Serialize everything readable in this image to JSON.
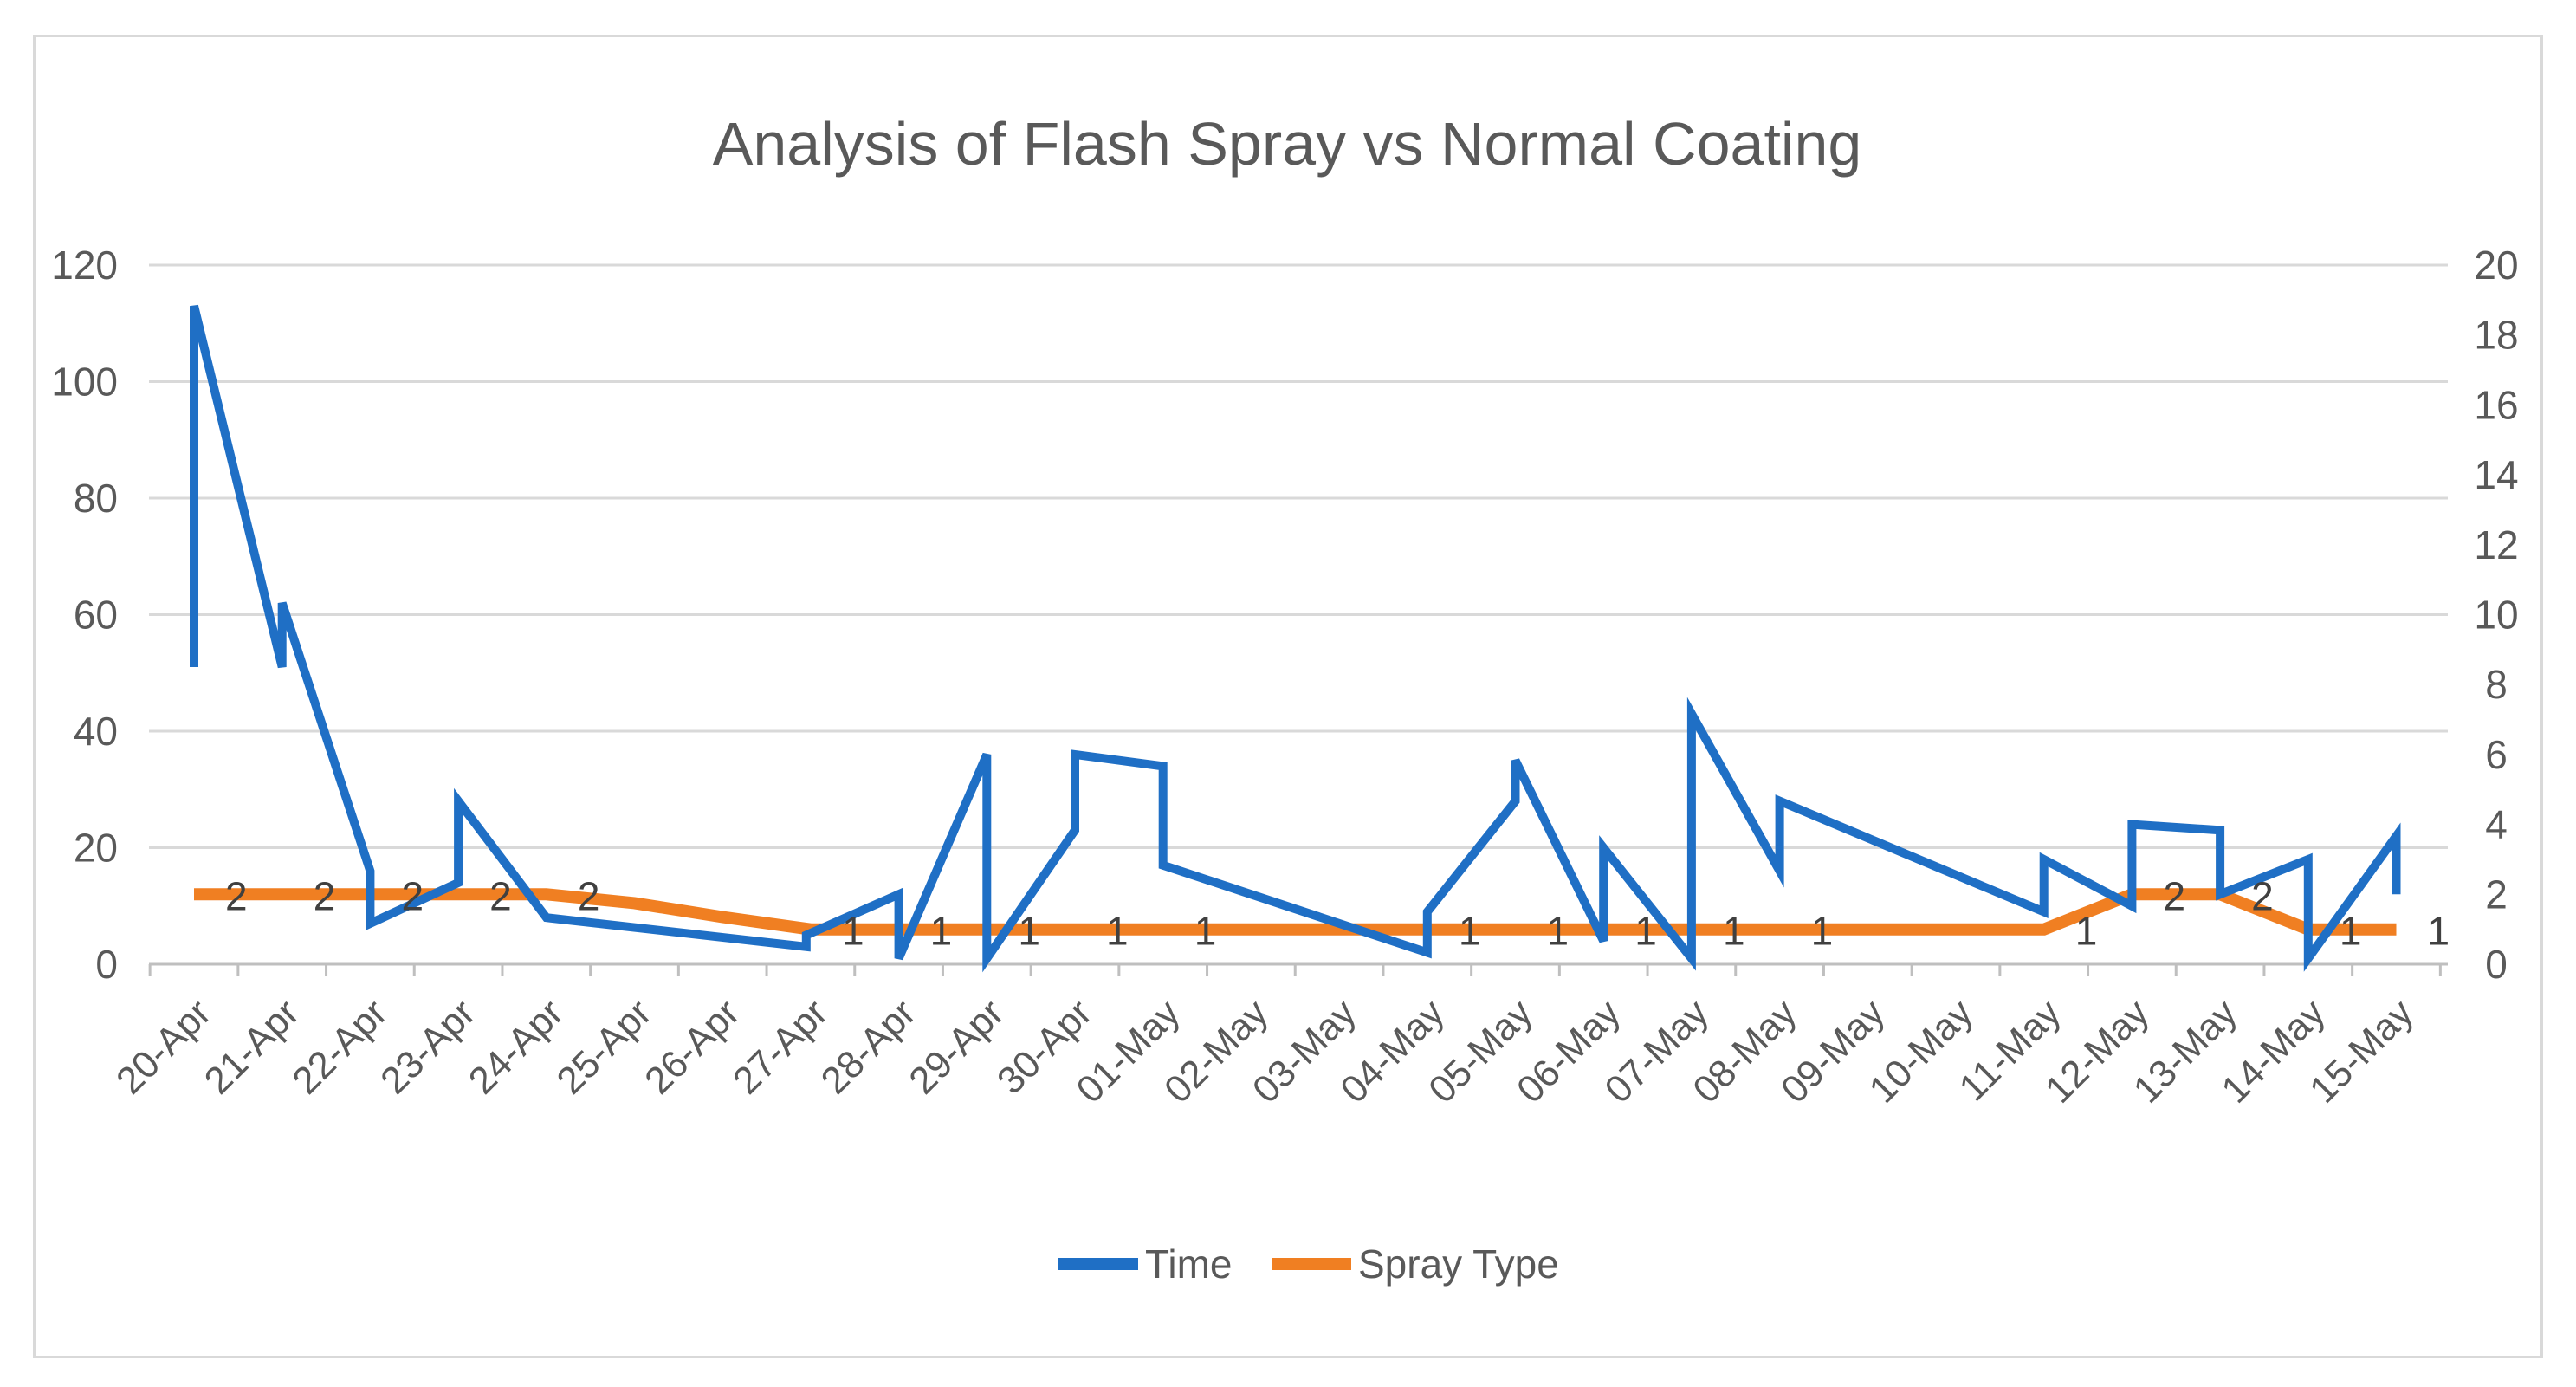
{
  "chart_data": {
    "type": "line",
    "title": "Analysis of Flash Spray vs Normal Coating",
    "categories": [
      "20-Apr",
      "21-Apr",
      "22-Apr",
      "23-Apr",
      "24-Apr",
      "25-Apr",
      "26-Apr",
      "27-Apr",
      "28-Apr",
      "29-Apr",
      "30-Apr",
      "01-May",
      "02-May",
      "03-May",
      "04-May",
      "05-May",
      "06-May",
      "07-May",
      "08-May",
      "09-May",
      "10-May",
      "11-May",
      "12-May",
      "13-May",
      "14-May",
      "15-May"
    ],
    "left_axis": {
      "ylim": [
        0,
        120
      ],
      "ticks": [
        "0",
        "20",
        "40",
        "60",
        "80",
        "100",
        "120"
      ]
    },
    "right_axis": {
      "ylim": [
        0,
        20
      ],
      "ticks": [
        "0",
        "2",
        "4",
        "6",
        "8",
        "10",
        "12",
        "14",
        "16",
        "18",
        "20"
      ]
    },
    "grid": true,
    "legend_position": "bottom",
    "series": [
      {
        "name": "Time",
        "axis": "left",
        "color": "#1f6fc5",
        "points": [
          [
            0.0,
            51
          ],
          [
            0.0,
            113
          ],
          [
            1.0,
            51
          ],
          [
            1.0,
            62
          ],
          [
            2.0,
            16
          ],
          [
            2.0,
            7
          ],
          [
            3.0,
            14
          ],
          [
            3.0,
            28
          ],
          [
            4.0,
            8
          ],
          [
            6.95,
            3
          ],
          [
            6.95,
            5
          ],
          [
            8.0,
            12
          ],
          [
            8.0,
            1
          ],
          [
            9.0,
            36
          ],
          [
            9.0,
            1
          ],
          [
            10.0,
            23
          ],
          [
            10.0,
            36
          ],
          [
            11.0,
            34
          ],
          [
            11.0,
            17
          ],
          [
            14.0,
            2
          ],
          [
            14.0,
            9
          ],
          [
            15.0,
            28
          ],
          [
            15.0,
            35
          ],
          [
            16.0,
            4
          ],
          [
            16.0,
            20
          ],
          [
            17.0,
            1
          ],
          [
            17.0,
            43
          ],
          [
            18.0,
            16
          ],
          [
            18.0,
            28
          ],
          [
            21.0,
            9
          ],
          [
            21.0,
            18
          ],
          [
            22.0,
            10
          ],
          [
            22.0,
            24
          ],
          [
            23.0,
            23
          ],
          [
            23.0,
            12
          ],
          [
            24.0,
            18
          ],
          [
            24.0,
            1
          ],
          [
            25.0,
            22
          ],
          [
            25.0,
            12
          ]
        ]
      },
      {
        "name": "Spray Type",
        "axis": "right",
        "color": "#f07f22",
        "points": [
          [
            0.0,
            2
          ],
          [
            1.0,
            2
          ],
          [
            2.0,
            2
          ],
          [
            3.0,
            2
          ],
          [
            4.0,
            2
          ],
          [
            5.0,
            1.75
          ],
          [
            6.0,
            1.35
          ],
          [
            7.0,
            1
          ],
          [
            8.0,
            1
          ],
          [
            9.0,
            1
          ],
          [
            10.0,
            1
          ],
          [
            11.0,
            1
          ],
          [
            12.0,
            1
          ],
          [
            13.0,
            1
          ],
          [
            14.0,
            1
          ],
          [
            15.0,
            1
          ],
          [
            16.0,
            1
          ],
          [
            17.0,
            1
          ],
          [
            18.0,
            1
          ],
          [
            19.0,
            1
          ],
          [
            20.0,
            1
          ],
          [
            21.0,
            1
          ],
          [
            22.0,
            2
          ],
          [
            23.0,
            2
          ],
          [
            24.0,
            1
          ],
          [
            25.0,
            1
          ]
        ],
        "data_labels": [
          {
            "x": 0.5,
            "y": 2,
            "text": "2"
          },
          {
            "x": 1.5,
            "y": 2,
            "text": "2"
          },
          {
            "x": 2.5,
            "y": 2,
            "text": "2"
          },
          {
            "x": 3.5,
            "y": 2,
            "text": "2"
          },
          {
            "x": 4.5,
            "y": 2,
            "text": "2"
          },
          {
            "x": 7.5,
            "y": 1,
            "text": "1"
          },
          {
            "x": 8.5,
            "y": 1,
            "text": "1"
          },
          {
            "x": 9.5,
            "y": 1,
            "text": "1"
          },
          {
            "x": 10.5,
            "y": 1,
            "text": "1"
          },
          {
            "x": 11.5,
            "y": 1,
            "text": "1"
          },
          {
            "x": 14.5,
            "y": 1,
            "text": "1"
          },
          {
            "x": 15.5,
            "y": 1,
            "text": "1"
          },
          {
            "x": 16.5,
            "y": 1,
            "text": "1"
          },
          {
            "x": 17.5,
            "y": 1,
            "text": "1"
          },
          {
            "x": 18.5,
            "y": 1,
            "text": "1"
          },
          {
            "x": 21.5,
            "y": 1,
            "text": "1"
          },
          {
            "x": 22.5,
            "y": 2,
            "text": "2"
          },
          {
            "x": 23.5,
            "y": 2,
            "text": "2"
          },
          {
            "x": 24.5,
            "y": 1,
            "text": "1"
          },
          {
            "x": 25.5,
            "y": 1,
            "text": "1"
          }
        ]
      }
    ]
  }
}
